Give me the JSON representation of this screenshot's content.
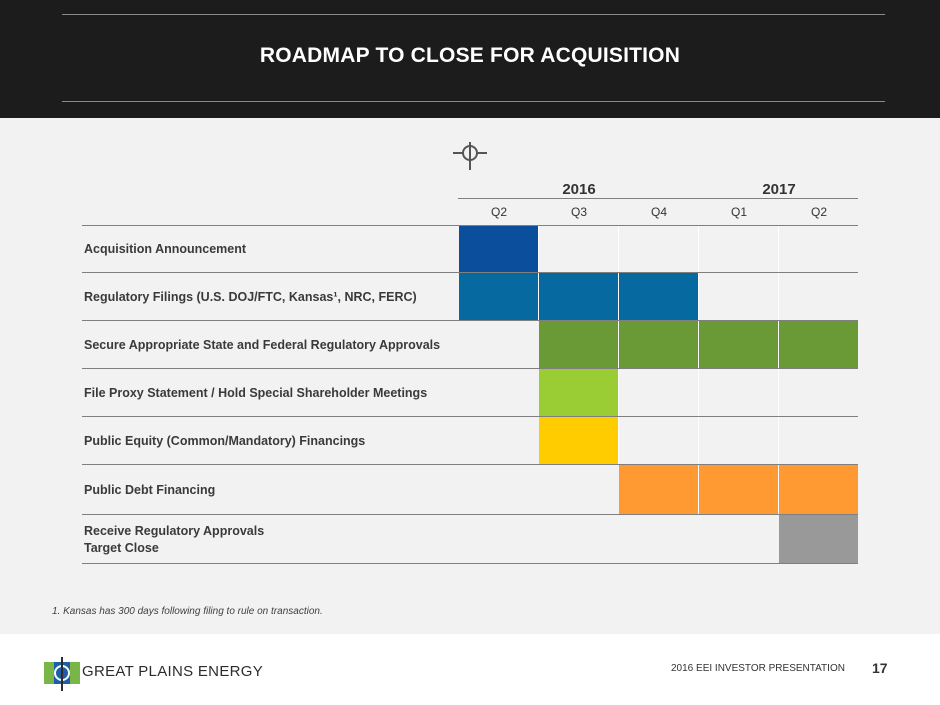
{
  "header": {
    "title": "ROADMAP TO CLOSE FOR ACQUISITION"
  },
  "timeline": {
    "years": [
      "2016",
      "2017"
    ],
    "quarters": [
      "Q2",
      "Q3",
      "Q4",
      "Q1",
      "Q2"
    ],
    "rows": [
      {
        "label": "Acquisition Announcement",
        "quarters": [
          "Q2 2016"
        ],
        "color": "#0b4f9c"
      },
      {
        "label": "Regulatory Filings (U.S. DOJ/FTC, Kansas¹, NRC, FERC)",
        "quarters": [
          "Q2 2016",
          "Q3 2016",
          "Q4 2016"
        ],
        "color": "#066aa1"
      },
      {
        "label": "Secure Appropriate State and Federal Regulatory Approvals",
        "quarters": [
          "Q3 2016",
          "Q4 2016",
          "Q1 2017",
          "Q2 2017"
        ],
        "color": "#6a9a36"
      },
      {
        "label": "File Proxy Statement / Hold Special Shareholder Meetings",
        "quarters": [
          "Q3 2016"
        ],
        "color": "#9acc34"
      },
      {
        "label": "Public Equity (Common/Mandatory) Financings",
        "quarters": [
          "Q3 2016"
        ],
        "color": "#ffcc00"
      },
      {
        "label": "Public Debt Financing",
        "quarters": [
          "Q4 2016",
          "Q1 2017",
          "Q2 2017"
        ],
        "color": "#ff9a33"
      },
      {
        "label": "Receive Regulatory Approvals",
        "label2": "Target Close",
        "quarters": [
          "Q2 2017"
        ],
        "color": "#999999"
      }
    ]
  },
  "footnote": "1. Kansas has 300 days following filing to rule on transaction.",
  "footer": {
    "company": "GREAT PLAINS ENERGY",
    "presentation": "2016 EEI INVESTOR PRESENTATION",
    "page_number": "17"
  },
  "colors": {
    "header_bg": "#1c1c1c",
    "content_bg": "#f2f2f2",
    "logo_green": "#7ab547",
    "logo_blue": "#1d5fa6"
  }
}
